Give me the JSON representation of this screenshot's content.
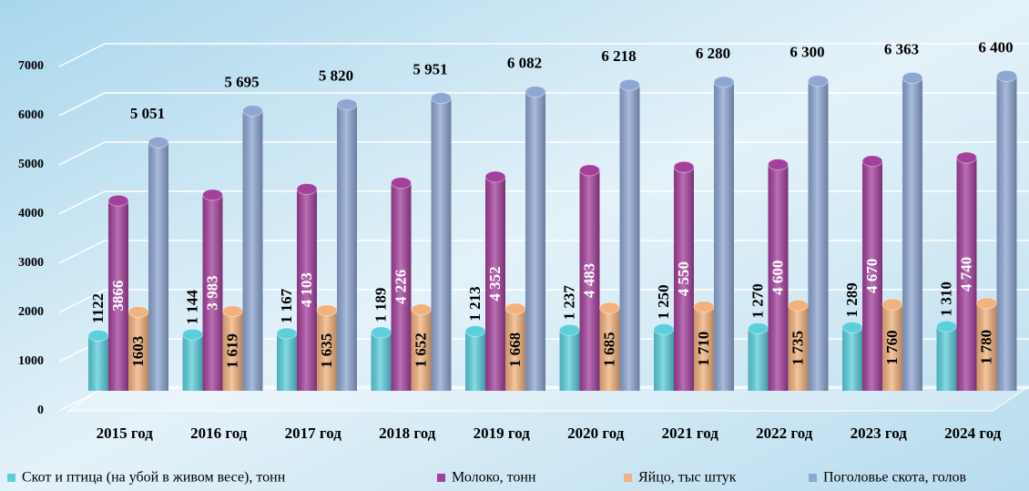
{
  "chart_data": {
    "type": "bar",
    "categories": [
      "2015 год",
      "2016 год",
      "2017 год",
      "2018 год",
      "2019 год",
      "2020 год",
      "2021 год",
      "2022 год",
      "2023 год",
      "2024 год"
    ],
    "series": [
      {
        "name": "Скот и птица (на убой в живом весе), тонн",
        "color": "#5ccfdc",
        "values": [
          1122,
          1144,
          1167,
          1189,
          1213,
          1237,
          1250,
          1270,
          1289,
          1310
        ],
        "value_labels": [
          "1122",
          "1 144",
          "1 167",
          "1 189",
          "1 213",
          "1 237",
          "1 250",
          "1 270",
          "1 289",
          "1 310"
        ]
      },
      {
        "name": "Молоко, тонн",
        "color": "#a3409b",
        "values": [
          3866,
          3983,
          4103,
          4226,
          4352,
          4483,
          4550,
          4600,
          4670,
          4740
        ],
        "value_labels": [
          "3866",
          "3 983",
          "4 103",
          "4 226",
          "4 352",
          "4 483",
          "4 550",
          "4 600",
          "4 670",
          "4 740"
        ]
      },
      {
        "name": "Яйцо, тыс штук",
        "color": "#f2b27e",
        "values": [
          1603,
          1619,
          1635,
          1652,
          1668,
          1685,
          1710,
          1735,
          1760,
          1780
        ],
        "value_labels": [
          "1603",
          "1 619",
          "1 635",
          "1 652",
          "1 668",
          "1 685",
          "1 710",
          "1 735",
          "1 760",
          "1 780"
        ]
      },
      {
        "name": "Поголовье скота, голов",
        "color": "#8ea6d2",
        "values": [
          5051,
          5695,
          5820,
          5951,
          6082,
          6218,
          6280,
          6300,
          6363,
          6400
        ],
        "value_labels": [
          "5 051",
          "5 695",
          "5 820",
          "5 951",
          "6 082",
          "6 218",
          "6 280",
          "6 300",
          "6 363",
          "6 400"
        ]
      }
    ],
    "ylim": [
      0,
      8000
    ],
    "yticks": [
      0,
      1000,
      2000,
      3000,
      4000,
      5000,
      6000,
      7000
    ],
    "grid": true
  }
}
